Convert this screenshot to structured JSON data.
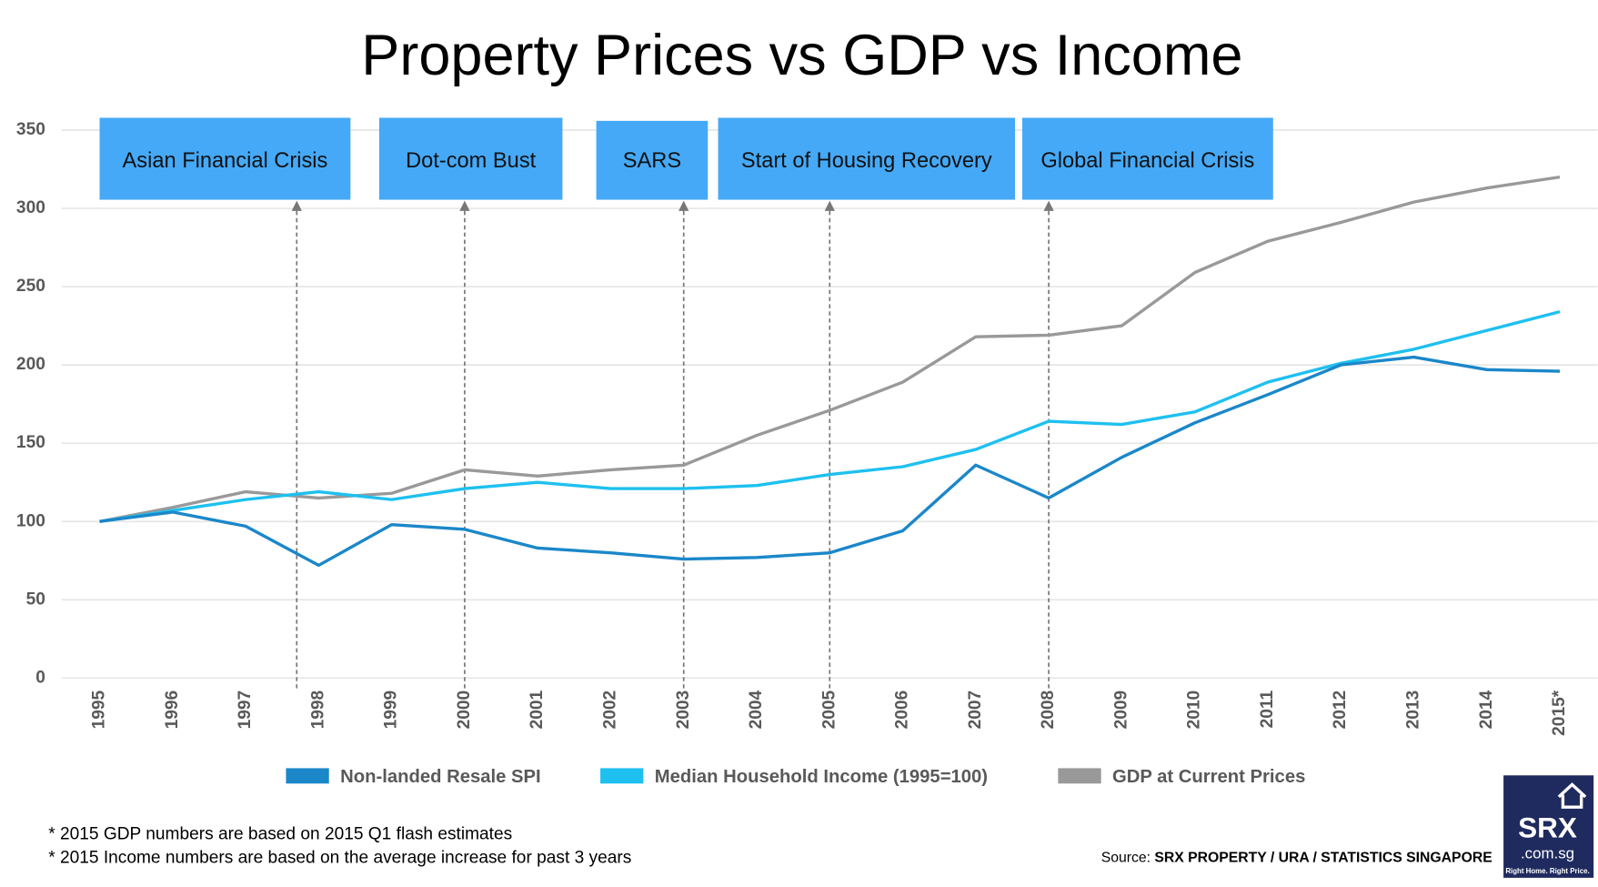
{
  "chart_data": {
    "type": "line",
    "title": "Property Prices vs GDP vs Income",
    "categories": [
      "1995",
      "1996",
      "1997",
      "1998",
      "1999",
      "2000",
      "2001",
      "2002",
      "2003",
      "2004",
      "2005",
      "2006",
      "2007",
      "2008",
      "2009",
      "2010",
      "2011",
      "2012",
      "2013",
      "2014",
      "2015*"
    ],
    "series": [
      {
        "name": "Non-landed Resale SPI",
        "color": "#1b87c9",
        "values": [
          100,
          106,
          97,
          72,
          98,
          95,
          83,
          80,
          76,
          77,
          80,
          94,
          136,
          115,
          141,
          163,
          181,
          200,
          205,
          197,
          196
        ]
      },
      {
        "name": "Median Household Income (1995=100)",
        "color": "#1ec0f0",
        "values": [
          100,
          107,
          114,
          119,
          114,
          121,
          125,
          121,
          121,
          123,
          130,
          135,
          146,
          164,
          162,
          170,
          189,
          201,
          210,
          222,
          234
        ]
      },
      {
        "name": "GDP at Current Prices",
        "color": "#999999",
        "values": [
          100,
          109,
          119,
          115,
          118,
          133,
          129,
          133,
          136,
          155,
          171,
          189,
          218,
          219,
          225,
          259,
          279,
          291,
          304,
          313,
          320
        ]
      }
    ],
    "ylim": [
      0,
      350
    ],
    "yticks": [
      0,
      50,
      100,
      150,
      200,
      250,
      300,
      350
    ],
    "grid": true,
    "annotations": [
      {
        "text": "Asian Financial Crisis",
        "x": 2.7
      },
      {
        "text": "Dot-com Bust",
        "x": 5
      },
      {
        "text": "SARS",
        "x": 8
      },
      {
        "text": "Start of Housing Recovery",
        "x": 10
      },
      {
        "text": "Global Financial Crisis",
        "x": 13
      }
    ],
    "notes": [
      "* 2015 GDP numbers are based on 2015 Q1 flash estimates",
      "* 2015 Income numbers are based on the average increase for past 3 years"
    ],
    "source_prefix": "Source: ",
    "source": "SRX PROPERTY / URA / STATISTICS SINGAPORE",
    "logo": {
      "name": "SRX",
      "domain": ".com.sg",
      "tagline": "Right Home. Right Price."
    }
  }
}
